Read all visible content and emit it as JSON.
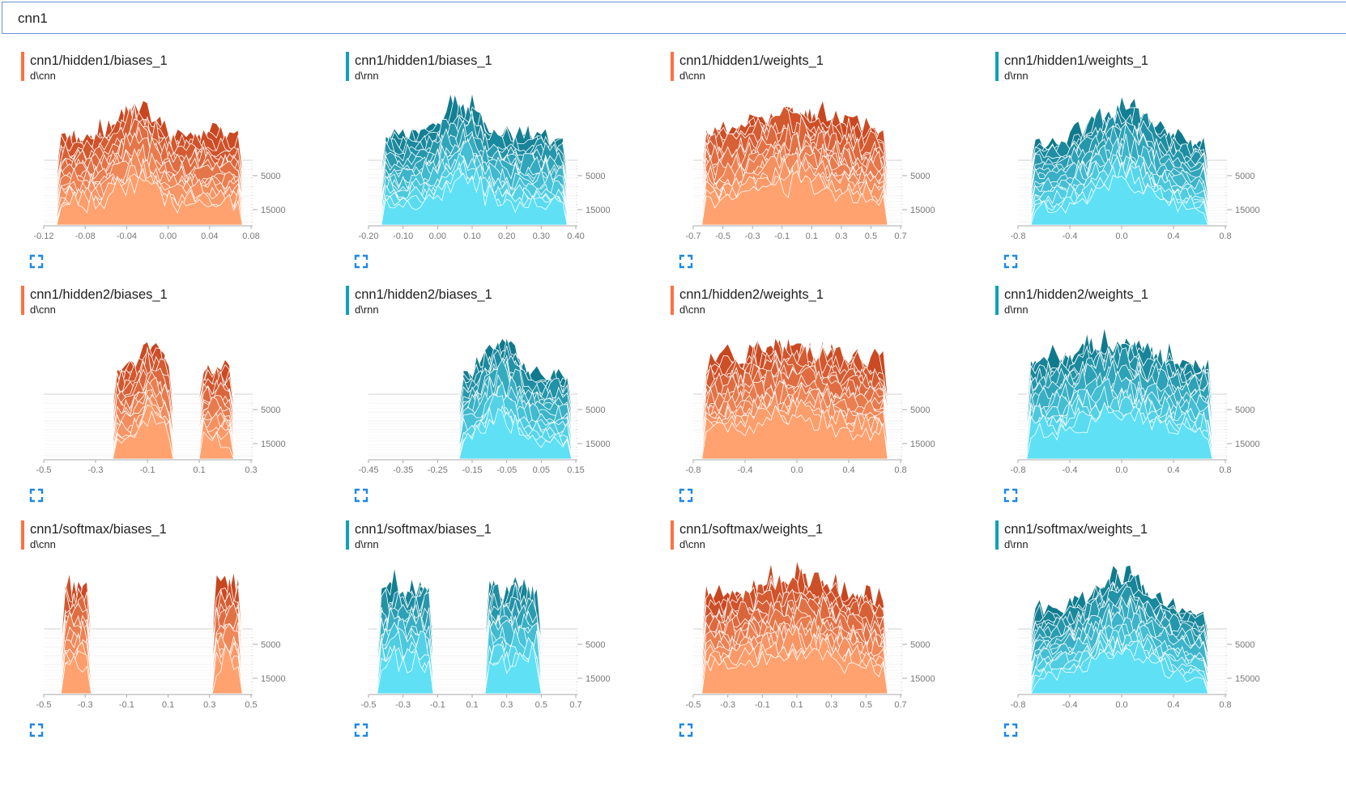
{
  "search": {
    "value": "cnn1"
  },
  "colors": {
    "cnn": {
      "dark": "#c8461f",
      "light": "#ffa270",
      "accent": "#ff7043"
    },
    "rnn": {
      "dark": "#0f7a8e",
      "light": "#5fe0f5",
      "accent": "#10a0b5"
    }
  },
  "cards": [
    {
      "title": "cnn1/hidden1/biases_1",
      "run": "d\\cnn",
      "color": "cnn",
      "x_ticks": [
        "-0.12",
        "-0.08",
        "-0.04",
        "0.00",
        "0.04",
        "0.08"
      ],
      "y_ticks": [
        "5000",
        "15000"
      ],
      "profile": "multi"
    },
    {
      "title": "cnn1/hidden1/biases_1",
      "run": "d\\rnn",
      "color": "rnn",
      "x_ticks": [
        "-0.20",
        "-0.10",
        "0.00",
        "0.10",
        "0.20",
        "0.30",
        "0.40"
      ],
      "y_ticks": [
        "5000",
        "15000"
      ],
      "profile": "multi"
    },
    {
      "title": "cnn1/hidden1/weights_1",
      "run": "d\\cnn",
      "color": "cnn",
      "x_ticks": [
        "-0.7",
        "-0.5",
        "-0.3",
        "-0.1",
        "0.1",
        "0.3",
        "0.5",
        "0.7"
      ],
      "y_ticks": [
        "5000",
        "15000"
      ],
      "profile": "wide"
    },
    {
      "title": "cnn1/hidden1/weights_1",
      "run": "d\\rnn",
      "color": "rnn",
      "x_ticks": [
        "-0.8",
        "-0.4",
        "0.0",
        "0.4",
        "0.8"
      ],
      "y_ticks": [
        "5000",
        "15000"
      ],
      "profile": "bell"
    },
    {
      "title": "cnn1/hidden2/biases_1",
      "run": "d\\cnn",
      "color": "cnn",
      "x_ticks": [
        "-0.5",
        "-0.3",
        "-0.1",
        "0.1",
        "0.3"
      ],
      "y_ticks": [
        "5000",
        "15000"
      ],
      "profile": "center"
    },
    {
      "title": "cnn1/hidden2/biases_1",
      "run": "d\\rnn",
      "color": "rnn",
      "x_ticks": [
        "-0.45",
        "-0.35",
        "-0.25",
        "-0.15",
        "-0.05",
        "0.05",
        "0.15"
      ],
      "y_ticks": [
        "5000",
        "15000"
      ],
      "profile": "right"
    },
    {
      "title": "cnn1/hidden2/weights_1",
      "run": "d\\cnn",
      "color": "cnn",
      "x_ticks": [
        "-0.8",
        "-0.4",
        "0.0",
        "0.4",
        "0.8"
      ],
      "y_ticks": [
        "5000",
        "15000"
      ],
      "profile": "wide"
    },
    {
      "title": "cnn1/hidden2/weights_1",
      "run": "d\\rnn",
      "color": "rnn",
      "x_ticks": [
        "-0.8",
        "-0.4",
        "0.0",
        "0.4",
        "0.8"
      ],
      "y_ticks": [
        "5000",
        "15000"
      ],
      "profile": "wide"
    },
    {
      "title": "cnn1/softmax/biases_1",
      "run": "d\\cnn",
      "color": "cnn",
      "x_ticks": [
        "-0.5",
        "-0.3",
        "-0.1",
        "0.1",
        "0.3",
        "0.5"
      ],
      "y_ticks": [
        "5000",
        "15000"
      ],
      "profile": "edges"
    },
    {
      "title": "cnn1/softmax/biases_1",
      "run": "d\\rnn",
      "color": "rnn",
      "x_ticks": [
        "-0.5",
        "-0.3",
        "-0.1",
        "0.1",
        "0.3",
        "0.5",
        "0.7"
      ],
      "y_ticks": [
        "5000",
        "15000"
      ],
      "profile": "edges2"
    },
    {
      "title": "cnn1/softmax/weights_1",
      "run": "d\\cnn",
      "color": "cnn",
      "x_ticks": [
        "-0.5",
        "-0.3",
        "-0.1",
        "0.1",
        "0.3",
        "0.5",
        "0.7"
      ],
      "y_ticks": [
        "5000",
        "15000"
      ],
      "profile": "wide"
    },
    {
      "title": "cnn1/softmax/weights_1",
      "run": "d\\rnn",
      "color": "rnn",
      "x_ticks": [
        "-0.8",
        "-0.4",
        "0.0",
        "0.4",
        "0.8"
      ],
      "y_ticks": [
        "5000",
        "15000"
      ],
      "profile": "bell"
    }
  ]
}
